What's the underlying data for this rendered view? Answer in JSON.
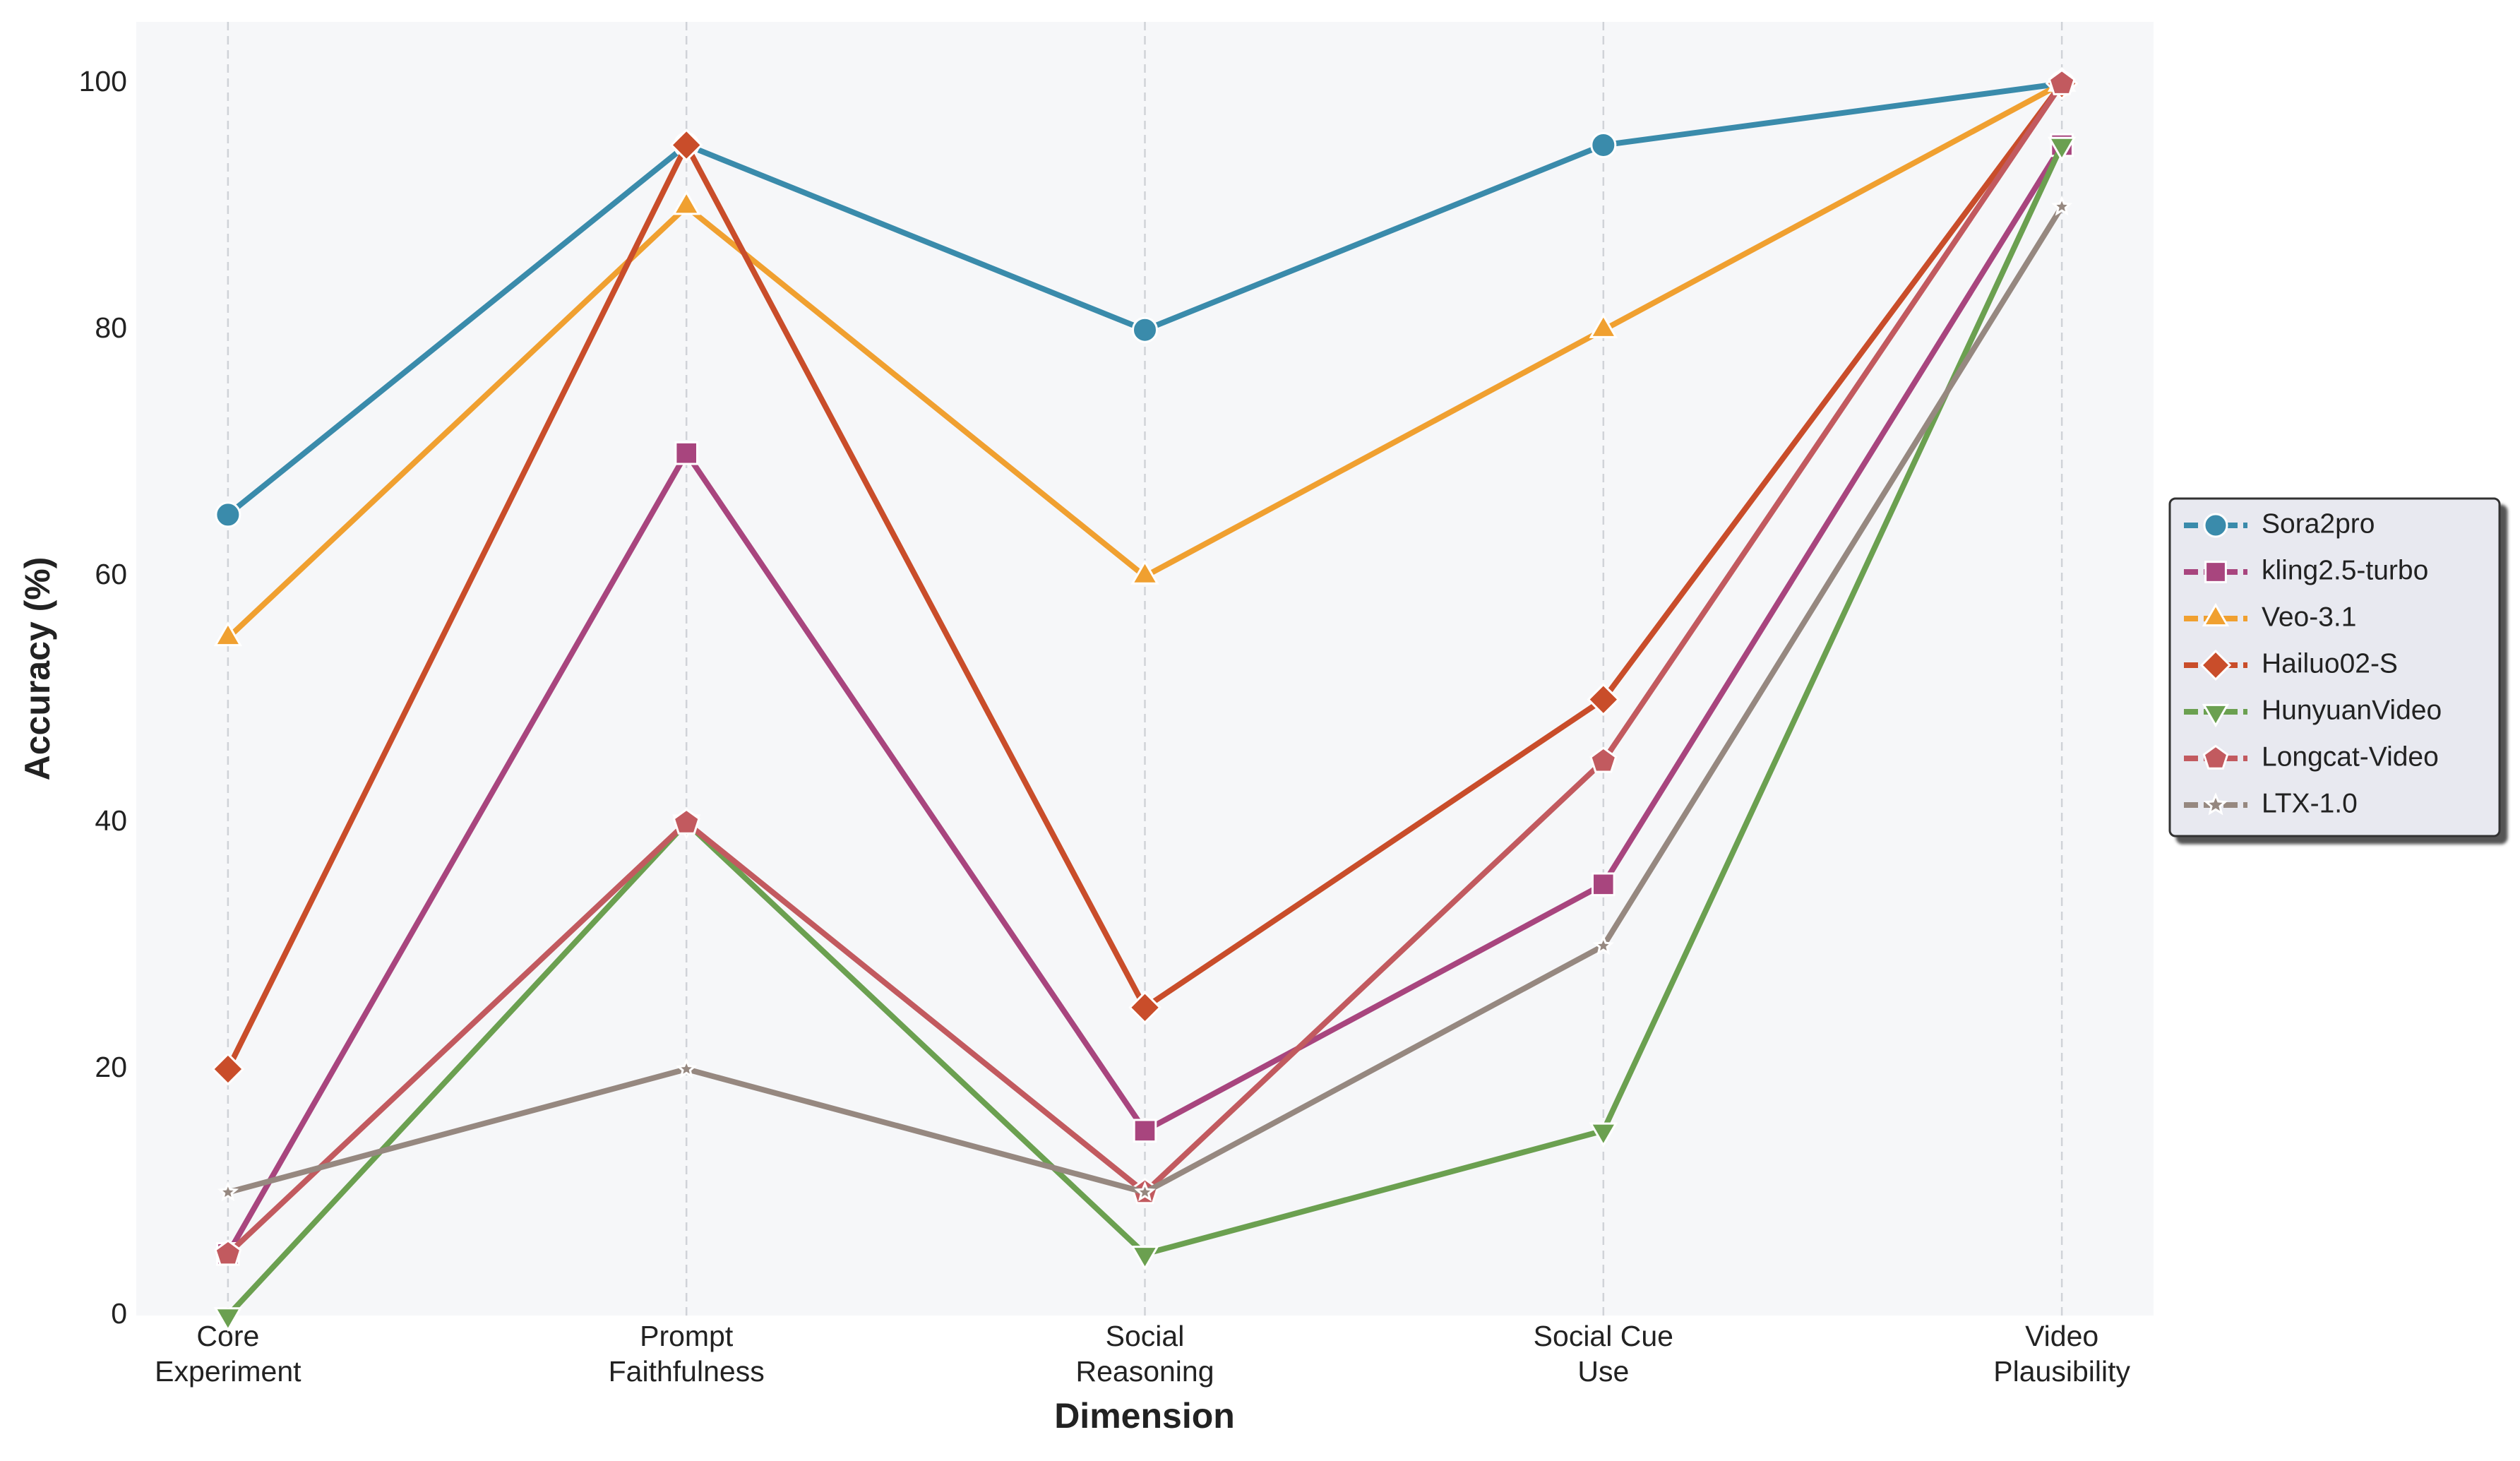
{
  "chart_data": {
    "type": "line",
    "x_label": "Dimension",
    "y_label": "Accuracy (%)",
    "categories": [
      "Core\nExperiment",
      "Prompt\nFaithfulness",
      "Social\nReasoning",
      "Social Cue\nUse",
      "Video\nPlausibility"
    ],
    "ylim": [
      0,
      105
    ],
    "yticks": [
      0,
      20,
      40,
      60,
      80,
      100
    ],
    "grid": "x",
    "legend": "right",
    "series": [
      {
        "name": "Sora2pro",
        "color": "#3a8bab",
        "marker": "circle",
        "values": [
          65,
          95,
          80,
          95,
          100
        ]
      },
      {
        "name": "kling2.5-turbo",
        "color": "#a8457e",
        "marker": "square",
        "values": [
          5,
          70,
          15,
          35,
          95
        ]
      },
      {
        "name": "Veo-3.1",
        "color": "#f0a030",
        "marker": "triangle-up",
        "values": [
          55,
          90,
          60,
          80,
          100
        ]
      },
      {
        "name": "Hailuo02-S",
        "color": "#c94d2a",
        "marker": "diamond",
        "values": [
          20,
          95,
          25,
          50,
          100
        ]
      },
      {
        "name": "HunyuanVideo",
        "color": "#6ba050",
        "marker": "triangle-down",
        "values": [
          0,
          40,
          5,
          15,
          95
        ]
      },
      {
        "name": "Longcat-Video",
        "color": "#c25a5f",
        "marker": "pentagon",
        "values": [
          5,
          40,
          10,
          45,
          100
        ]
      },
      {
        "name": "LTX-1.0",
        "color": "#968880",
        "marker": "star",
        "values": [
          10,
          20,
          10,
          30,
          90
        ]
      }
    ]
  }
}
